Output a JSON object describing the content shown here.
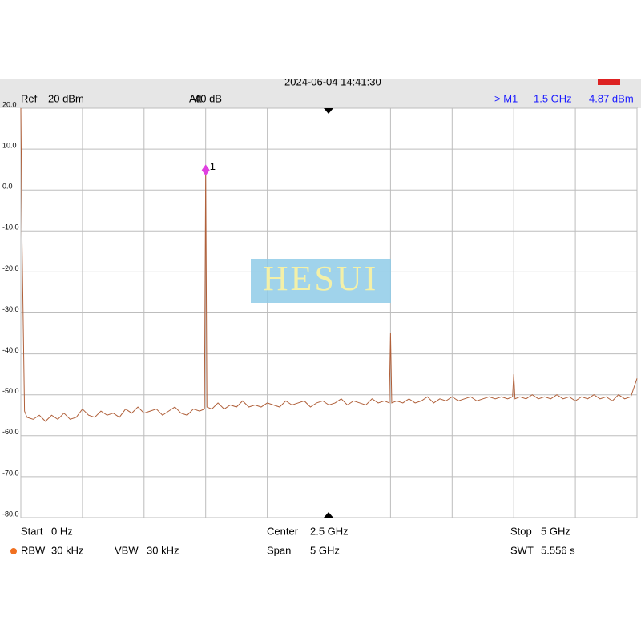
{
  "chart_data": {
    "type": "line",
    "timestamp": "2024-06-04 14:41:30",
    "watermark": "HESUI",
    "annotations_top": [
      {
        "label": "Ref",
        "value": "20 dBm"
      },
      {
        "label": "Att",
        "value": "40 dB"
      },
      {
        "label": "> M1",
        "value": "1.5 GHz"
      }
    ],
    "marker": {
      "label": "1",
      "x": 1.5,
      "y": 4.87,
      "y_label": "4.87 dBm"
    },
    "annotations_bottom": [
      {
        "label": "Start",
        "value": "0 Hz"
      },
      {
        "label": "Center",
        "value": "2.5 GHz"
      },
      {
        "label": "Stop",
        "value": "5 GHz"
      },
      {
        "label": "RBW",
        "value": "30 kHz"
      },
      {
        "label": "VBW",
        "value": "30 kHz"
      },
      {
        "label": "Span",
        "value": "5 GHz"
      },
      {
        "label": "SWT",
        "value": "5.556 s"
      }
    ],
    "xlim": [
      0,
      5
    ],
    "xticks": [
      0,
      0.5,
      1,
      1.5,
      2,
      2.5,
      3,
      3.5,
      4,
      4.5,
      5
    ],
    "ylim": [
      -80,
      20
    ],
    "yticks": [
      {
        "value": 20,
        "label": "20.0"
      },
      {
        "value": 10,
        "label": "10.0"
      },
      {
        "value": 0,
        "label": "0.0"
      },
      {
        "value": -10,
        "label": "-10.0"
      },
      {
        "value": -20,
        "label": "-20.0"
      },
      {
        "value": -30,
        "label": "-30.0"
      },
      {
        "value": -40,
        "label": "-40.0"
      },
      {
        "value": -50,
        "label": "-50.0"
      },
      {
        "value": -60,
        "label": "-60.0"
      },
      {
        "value": -70,
        "label": "-70.0"
      },
      {
        "value": -80,
        "label": "-80.0"
      }
    ],
    "grid": true,
    "x": [
      0,
      0.01,
      0.03,
      0.05,
      0.1,
      0.15,
      0.2,
      0.25,
      0.3,
      0.35,
      0.4,
      0.45,
      0.5,
      0.55,
      0.6,
      0.65,
      0.7,
      0.75,
      0.8,
      0.85,
      0.9,
      0.95,
      1.0,
      1.05,
      1.1,
      1.15,
      1.2,
      1.25,
      1.3,
      1.35,
      1.4,
      1.45,
      1.49,
      1.5,
      1.51,
      1.55,
      1.6,
      1.65,
      1.7,
      1.75,
      1.8,
      1.85,
      1.9,
      1.95,
      2.0,
      2.05,
      2.1,
      2.15,
      2.2,
      2.25,
      2.3,
      2.35,
      2.4,
      2.45,
      2.5,
      2.55,
      2.6,
      2.65,
      2.7,
      2.75,
      2.8,
      2.85,
      2.9,
      2.95,
      2.99,
      3.0,
      3.01,
      3.05,
      3.1,
      3.15,
      3.2,
      3.25,
      3.3,
      3.35,
      3.4,
      3.45,
      3.5,
      3.55,
      3.6,
      3.65,
      3.7,
      3.75,
      3.8,
      3.85,
      3.9,
      3.95,
      3.99,
      4.0,
      4.01,
      4.05,
      4.1,
      4.15,
      4.2,
      4.25,
      4.3,
      4.35,
      4.4,
      4.45,
      4.5,
      4.55,
      4.6,
      4.65,
      4.7,
      4.75,
      4.8,
      4.85,
      4.9,
      4.95,
      5.0
    ],
    "series": [
      {
        "color": "#b0603a",
        "values": [
          20,
          -13,
          -54,
          -55.5,
          -56,
          -55,
          -56.5,
          -55,
          -56,
          -54.5,
          -56,
          -55.5,
          -53.5,
          -55,
          -55.5,
          -54,
          -55,
          -54.5,
          -55.5,
          -53.5,
          -54.5,
          -53,
          -54.5,
          -54,
          -53.5,
          -55,
          -54,
          -53,
          -54.5,
          -55,
          -53.5,
          -54,
          -53.5,
          4.87,
          -53,
          -53.5,
          -52,
          -53.5,
          -52.5,
          -53,
          -51.5,
          -53,
          -52.5,
          -53,
          -52,
          -52.5,
          -53,
          -51.5,
          -52.5,
          -52,
          -51.5,
          -53,
          -52,
          -51.5,
          -52.5,
          -52,
          -51,
          -52.5,
          -51.5,
          -52,
          -52.5,
          -51,
          -52,
          -51.5,
          -52,
          -35,
          -52,
          -51.5,
          -52,
          -51,
          -52,
          -51.5,
          -50.5,
          -52,
          -51,
          -51.5,
          -50.5,
          -51.5,
          -51,
          -50.5,
          -51.5,
          -51,
          -50.5,
          -51,
          -50.5,
          -51,
          -50.5,
          -45,
          -51,
          -50.5,
          -51,
          -50,
          -51,
          -50.5,
          -51,
          -50,
          -51,
          -50.5,
          -51.5,
          -50.5,
          -51,
          -50,
          -51,
          -50.5,
          -51.5,
          -50,
          -51,
          -50.5,
          -46
        ]
      }
    ]
  }
}
